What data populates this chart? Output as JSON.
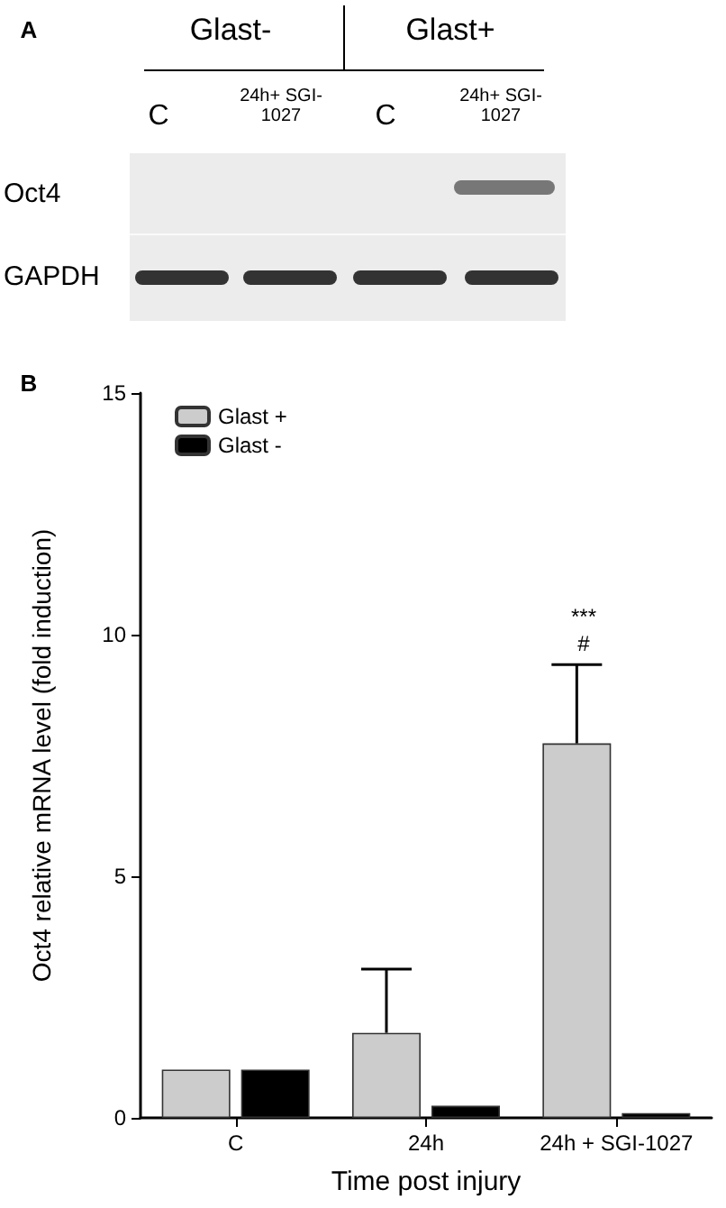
{
  "chart_data": {
    "type": "bar",
    "xlabel": "Time post injury",
    "ylabel": "Oct4 relative mRNA level (fold induction)",
    "categories": [
      "C",
      "24h",
      "24h + SGI-1027"
    ],
    "series": [
      {
        "name": "Glast +",
        "color": "#cccccc",
        "values": [
          1.0,
          1.76,
          7.75
        ],
        "errors": [
          null,
          [
            1.76,
            3.08
          ],
          [
            7.75,
            9.38
          ]
        ]
      },
      {
        "name": "Glast -",
        "color": "#000000",
        "values": [
          1.0,
          0.25,
          0.1
        ]
      }
    ],
    "ylim": [
      0,
      15
    ],
    "yticks": [
      0,
      5,
      10,
      15
    ],
    "grid": false,
    "legend": "top left",
    "annotations": [
      "A",
      "Glast-",
      "Glast+",
      "C",
      "24h+ SGI-1027",
      "C",
      "24h+ SGI-1027",
      "Oct4",
      "GAPDH",
      "B",
      "***",
      "#"
    ]
  }
}
